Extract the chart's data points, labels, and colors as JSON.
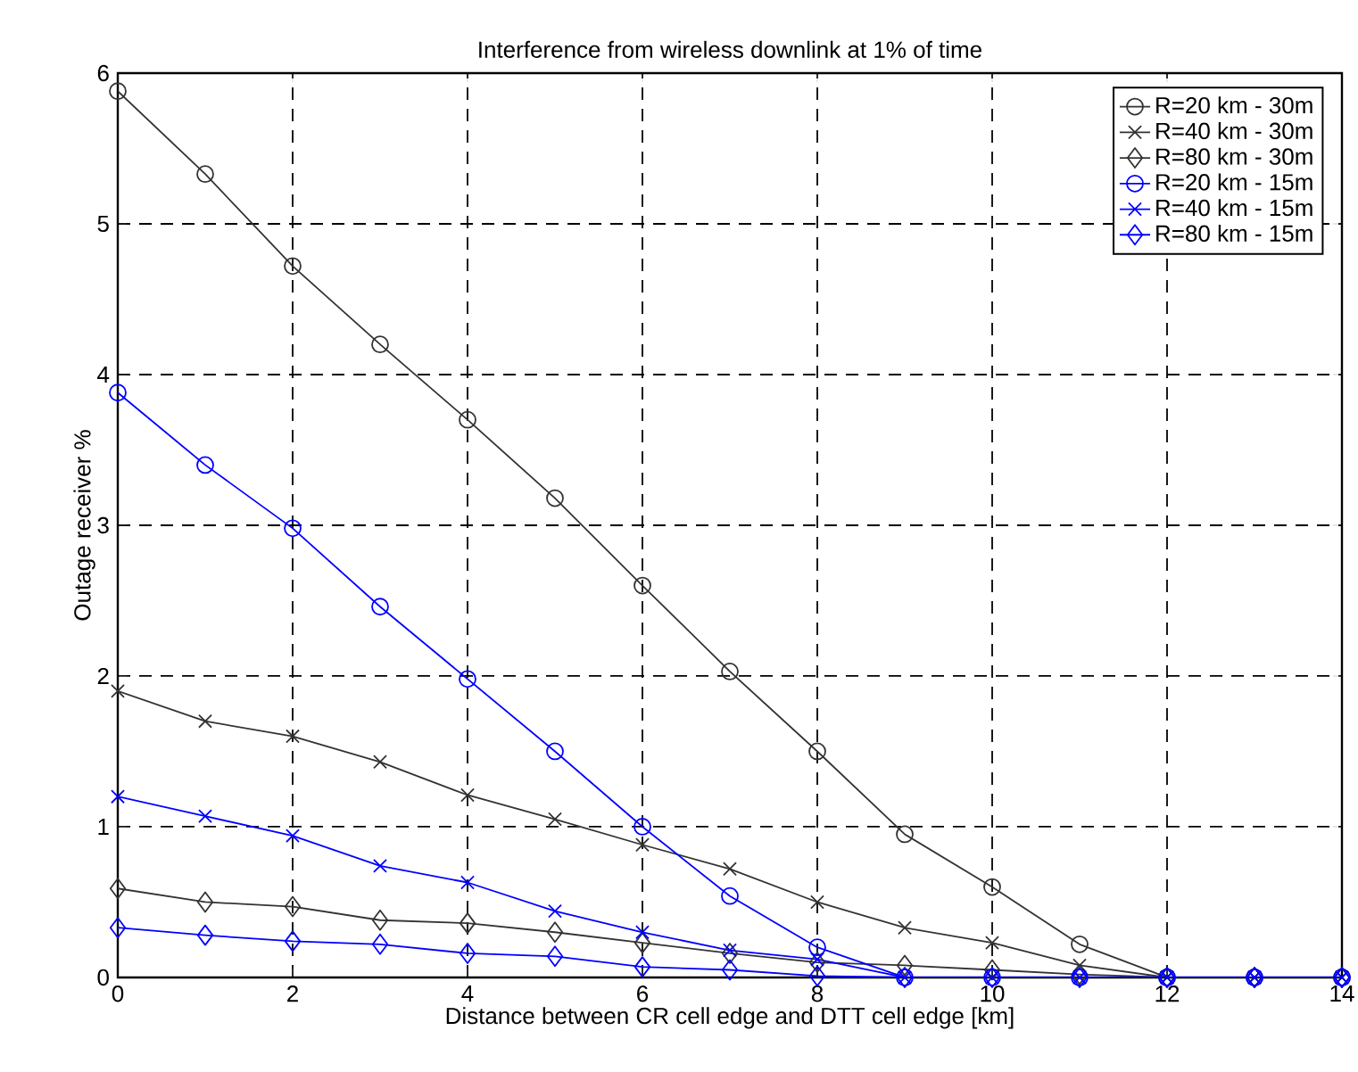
{
  "chart_data": {
    "type": "line",
    "title": "Interference from wireless downlink at 1% of time",
    "xlabel": "Distance between CR cell edge and DTT cell edge [km]",
    "ylabel": "Outage receiver %",
    "x": [
      0,
      1,
      2,
      3,
      4,
      5,
      6,
      7,
      8,
      9,
      10,
      11,
      12,
      13,
      14
    ],
    "xlim": [
      0,
      14
    ],
    "xticks": [
      0,
      2,
      4,
      6,
      8,
      10,
      12,
      14
    ],
    "ylim": [
      0,
      6
    ],
    "yticks": [
      0,
      1,
      2,
      3,
      4,
      5,
      6
    ],
    "grid": true,
    "legend": "top right",
    "line_style": "solid",
    "series": [
      {
        "name": "R=20 km - 30m",
        "color": "#333333",
        "marker": "circle",
        "values": [
          5.88,
          5.33,
          4.72,
          4.2,
          3.7,
          3.18,
          2.6,
          2.03,
          1.5,
          0.95,
          0.6,
          0.22,
          0,
          0,
          0
        ]
      },
      {
        "name": "R=40 km - 30m",
        "color": "#333333",
        "marker": "cross",
        "values": [
          1.9,
          1.7,
          1.6,
          1.43,
          1.21,
          1.05,
          0.88,
          0.72,
          0.5,
          0.33,
          0.23,
          0.08,
          0,
          0,
          0
        ]
      },
      {
        "name": "R=80 km - 30m",
        "color": "#333333",
        "marker": "diamond",
        "values": [
          0.59,
          0.5,
          0.47,
          0.38,
          0.36,
          0.3,
          0.23,
          0.16,
          0.1,
          0.08,
          0.05,
          0.02,
          0,
          0,
          0
        ]
      },
      {
        "name": "R=20 km - 15m",
        "color": "#0000ff",
        "marker": "circle",
        "values": [
          3.88,
          3.4,
          2.98,
          2.46,
          1.98,
          1.5,
          1.0,
          0.54,
          0.2,
          0,
          0,
          0,
          0,
          0,
          0
        ]
      },
      {
        "name": "R=40 km - 15m",
        "color": "#0000ff",
        "marker": "cross",
        "values": [
          1.2,
          1.07,
          0.94,
          0.74,
          0.63,
          0.44,
          0.3,
          0.18,
          0.12,
          0,
          0,
          0,
          0,
          0,
          0
        ]
      },
      {
        "name": "R=80 km - 15m",
        "color": "#0000ff",
        "marker": "diamond",
        "values": [
          0.33,
          0.28,
          0.24,
          0.22,
          0.16,
          0.14,
          0.07,
          0.05,
          0.01,
          0,
          0,
          0,
          0,
          0,
          0
        ]
      }
    ]
  }
}
